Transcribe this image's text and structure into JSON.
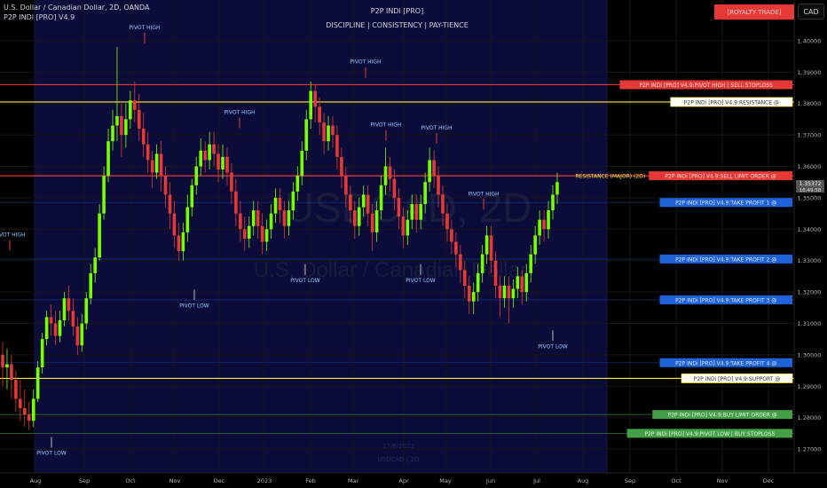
{
  "header": {
    "symbol_line": "U.S. Dollar / Canadian Dollar, 2D, OANDA",
    "indicator_line": "P2P INDi [PRO] V4.9",
    "center_title": "P2P INDi [PRO]",
    "center_subtitle": "DISCIPLINE  |  CONSISTENCY  |  PAY-TIENCE",
    "top_button": "[ROYALTY TRADE]",
    "currency_button": "CAD"
  },
  "watermark": {
    "big": "USDCAD, 2D",
    "small": "U.S. Dollar / Canadian Dollar"
  },
  "bottom_caption": [
    "17/8/2023",
    "USDCAD | 2D"
  ],
  "colors": {
    "up": "#76ff03",
    "down": "#e53935",
    "resistance": "#ffeb3b",
    "sell_stoploss": "#e53935",
    "take_profit": "#1e63d9",
    "buy": "#43a047",
    "zone_bg": "#0b0c3a",
    "grid": "#161616"
  },
  "chart_data": {
    "type": "candlestick",
    "y_axis_ticks": [
      "1.40000",
      "1.39000",
      "1.38000",
      "1.37000",
      "1.36000",
      "1.35000",
      "1.34000",
      "1.33000",
      "1.32000",
      "1.31000",
      "1.30000",
      "1.29000",
      "1.28000",
      "1.27000"
    ],
    "ylim": [
      1.265,
      1.405
    ],
    "x_axis_ticks": [
      "Aug",
      "Sep",
      "Oct",
      "Nov",
      "Dec",
      "2023",
      "Feb",
      "Mar",
      "Apr",
      "May",
      "Jun",
      "Jul",
      "Aug",
      "Sep",
      "Oct",
      "Nov",
      "Dec"
    ],
    "current_price": {
      "value": "1.35372",
      "countdown": "18:49:58"
    },
    "levels": [
      {
        "price": 1.386,
        "label": "P2P INDi [PRO] V4.9:PIVOT HIGH | SELL STOPLOSS",
        "price_label": "1.38600",
        "style": "sell_stoploss"
      },
      {
        "price": 1.3805,
        "label": "P2P INDi [PRO] V4.9:RESISTANCE @",
        "price_label": "1.38050",
        "style": "resistance"
      },
      {
        "price": 1.357,
        "label": "P2P INDi [PRO] V4.9:SELL LIMIT ORDER @",
        "price_label": "1.35700",
        "style": "sell_stoploss",
        "prefix": "RESISTANCE (MAJOR) (2D)"
      },
      {
        "price": 1.3485,
        "label": "P2P INDi [PRO] V4.9:TAKE PROFIT 1 @",
        "price_label": "1.34850",
        "style": "take_profit"
      },
      {
        "price": 1.3305,
        "label": "P2P INDi [PRO] V4.9:TAKE PROFIT 2 @",
        "price_label": "1.33050",
        "style": "take_profit"
      },
      {
        "price": 1.3175,
        "label": "P2P INDi [PRO] V4.9:TAKE PROFIT 3 @",
        "price_label": "1.31750",
        "style": "take_profit"
      },
      {
        "price": 1.2975,
        "label": "P2P INDi [PRO] V4.9:TAKE PROFIT 4 @",
        "price_label": "1.29750",
        "style": "take_profit"
      },
      {
        "price": 1.2925,
        "label": "P2P INDi [PRO] V4.9:SUPPORT @",
        "price_label": "1.29250",
        "style": "resistance"
      },
      {
        "price": 1.281,
        "label": "P2P INDi [PRO] V4.9:BUY LIMIT ORDER @",
        "price_label": "1.28100",
        "style": "buy"
      },
      {
        "price": 1.275,
        "label": "P2P INDi [PRO] V4.9:PIVOT LOW | BUY STOPLOSS",
        "price_label": "1.27500",
        "style": "buy"
      }
    ],
    "pivots": [
      {
        "label": "PIVOT HIGH",
        "type": "high",
        "x": "Jul",
        "price": 1.3315
      },
      {
        "label": "PIVOT LOW",
        "type": "low",
        "x": "Aug 2022",
        "price": 1.2755
      },
      {
        "label": "PIVOT HIGH",
        "type": "high",
        "x": "Oct",
        "price": 1.3975
      },
      {
        "label": "PIVOT LOW",
        "type": "low",
        "x": "Nov",
        "price": 1.3225
      },
      {
        "label": "PIVOT HIGH",
        "type": "high",
        "x": "Nov",
        "price": 1.3705
      },
      {
        "label": "PIVOT LOW",
        "type": "low",
        "x": "Jan",
        "price": 1.3305
      },
      {
        "label": "PIVOT HIGH",
        "type": "high",
        "x": "Mar",
        "price": 1.3865
      },
      {
        "label": "PIVOT HIGH",
        "type": "high",
        "x": "Apr",
        "price": 1.3665
      },
      {
        "label": "PIVOT LOW",
        "type": "low",
        "x": "Apr",
        "price": 1.3305
      },
      {
        "label": "PIVOT HIGH",
        "type": "high",
        "x": "May",
        "price": 1.3655
      },
      {
        "label": "PIVOT HIGH",
        "type": "high",
        "x": "Jun",
        "price": 1.3445
      },
      {
        "label": "PIVOT LOW",
        "type": "low",
        "x": "Jul",
        "price": 1.3095
      }
    ],
    "candles": [
      [
        1.3,
        1.296,
        1.304,
        1.29
      ],
      [
        1.296,
        1.297,
        1.302,
        1.289
      ],
      [
        1.297,
        1.292,
        1.3,
        1.286
      ],
      [
        1.292,
        1.286,
        1.295,
        1.282
      ],
      [
        1.286,
        1.283,
        1.292,
        1.279
      ],
      [
        1.283,
        1.281,
        1.289,
        1.277
      ],
      [
        1.281,
        1.279,
        1.285,
        1.276
      ],
      [
        1.279,
        1.286,
        1.289,
        1.277
      ],
      [
        1.286,
        1.296,
        1.298,
        1.285
      ],
      [
        1.296,
        1.305,
        1.307,
        1.294
      ],
      [
        1.305,
        1.312,
        1.314,
        1.303
      ],
      [
        1.312,
        1.31,
        1.316,
        1.306
      ],
      [
        1.31,
        1.306,
        1.314,
        1.303
      ],
      [
        1.306,
        1.311,
        1.314,
        1.304
      ],
      [
        1.311,
        1.318,
        1.32,
        1.309
      ],
      [
        1.318,
        1.314,
        1.322,
        1.311
      ],
      [
        1.314,
        1.309,
        1.318,
        1.306
      ],
      [
        1.309,
        1.303,
        1.312,
        1.3
      ],
      [
        1.303,
        1.31,
        1.313,
        1.301
      ],
      [
        1.31,
        1.318,
        1.32,
        1.308
      ],
      [
        1.318,
        1.326,
        1.329,
        1.316
      ],
      [
        1.326,
        1.331,
        1.334,
        1.323
      ],
      [
        1.331,
        1.345,
        1.348,
        1.33
      ],
      [
        1.345,
        1.357,
        1.36,
        1.343
      ],
      [
        1.357,
        1.368,
        1.372,
        1.355
      ],
      [
        1.368,
        1.373,
        1.378,
        1.365
      ],
      [
        1.373,
        1.376,
        1.398,
        1.368
      ],
      [
        1.376,
        1.37,
        1.38,
        1.363
      ],
      [
        1.37,
        1.375,
        1.38,
        1.366
      ],
      [
        1.375,
        1.381,
        1.384,
        1.372
      ],
      [
        1.381,
        1.378,
        1.387,
        1.374
      ],
      [
        1.378,
        1.372,
        1.383,
        1.368
      ],
      [
        1.372,
        1.367,
        1.377,
        1.363
      ],
      [
        1.367,
        1.362,
        1.371,
        1.358
      ],
      [
        1.362,
        1.358,
        1.365,
        1.353
      ],
      [
        1.358,
        1.364,
        1.367,
        1.356
      ],
      [
        1.364,
        1.357,
        1.368,
        1.352
      ],
      [
        1.357,
        1.351,
        1.36,
        1.347
      ],
      [
        1.351,
        1.345,
        1.355,
        1.34
      ],
      [
        1.345,
        1.338,
        1.349,
        1.334
      ],
      [
        1.338,
        1.333,
        1.342,
        1.33
      ],
      [
        1.333,
        1.339,
        1.342,
        1.33
      ],
      [
        1.339,
        1.347,
        1.351,
        1.336
      ],
      [
        1.347,
        1.354,
        1.356,
        1.344
      ],
      [
        1.354,
        1.36,
        1.363,
        1.351
      ],
      [
        1.36,
        1.365,
        1.369,
        1.357
      ],
      [
        1.365,
        1.362,
        1.368,
        1.358
      ],
      [
        1.362,
        1.367,
        1.371,
        1.359
      ],
      [
        1.367,
        1.364,
        1.371,
        1.36
      ],
      [
        1.364,
        1.359,
        1.367,
        1.355
      ],
      [
        1.359,
        1.363,
        1.367,
        1.356
      ],
      [
        1.363,
        1.358,
        1.366,
        1.354
      ],
      [
        1.358,
        1.352,
        1.361,
        1.348
      ],
      [
        1.352,
        1.345,
        1.356,
        1.341
      ],
      [
        1.345,
        1.34,
        1.349,
        1.336
      ],
      [
        1.34,
        1.337,
        1.344,
        1.333
      ],
      [
        1.337,
        1.341,
        1.344,
        1.334
      ],
      [
        1.341,
        1.346,
        1.349,
        1.338
      ],
      [
        1.346,
        1.341,
        1.349,
        1.337
      ],
      [
        1.341,
        1.336,
        1.345,
        1.332
      ],
      [
        1.336,
        1.34,
        1.343,
        1.333
      ],
      [
        1.34,
        1.345,
        1.348,
        1.337
      ],
      [
        1.345,
        1.35,
        1.353,
        1.342
      ],
      [
        1.35,
        1.346,
        1.353,
        1.342
      ],
      [
        1.346,
        1.341,
        1.349,
        1.337
      ],
      [
        1.341,
        1.346,
        1.349,
        1.338
      ],
      [
        1.346,
        1.352,
        1.355,
        1.343
      ],
      [
        1.352,
        1.357,
        1.36,
        1.349
      ],
      [
        1.357,
        1.365,
        1.368,
        1.354
      ],
      [
        1.365,
        1.375,
        1.378,
        1.362
      ],
      [
        1.375,
        1.384,
        1.387,
        1.372
      ],
      [
        1.384,
        1.379,
        1.386,
        1.374
      ],
      [
        1.379,
        1.374,
        1.382,
        1.37
      ],
      [
        1.374,
        1.368,
        1.377,
        1.364
      ],
      [
        1.368,
        1.373,
        1.376,
        1.365
      ],
      [
        1.373,
        1.37,
        1.376,
        1.366
      ],
      [
        1.37,
        1.363,
        1.373,
        1.359
      ],
      [
        1.363,
        1.357,
        1.366,
        1.353
      ],
      [
        1.357,
        1.351,
        1.36,
        1.347
      ],
      [
        1.351,
        1.346,
        1.354,
        1.342
      ],
      [
        1.346,
        1.341,
        1.349,
        1.337
      ],
      [
        1.341,
        1.347,
        1.35,
        1.338
      ],
      [
        1.347,
        1.351,
        1.354,
        1.344
      ],
      [
        1.351,
        1.345,
        1.354,
        1.341
      ],
      [
        1.345,
        1.339,
        1.348,
        1.333
      ],
      [
        1.339,
        1.346,
        1.349,
        1.336
      ],
      [
        1.346,
        1.354,
        1.357,
        1.343
      ],
      [
        1.354,
        1.36,
        1.366,
        1.351
      ],
      [
        1.36,
        1.356,
        1.363,
        1.352
      ],
      [
        1.356,
        1.35,
        1.359,
        1.346
      ],
      [
        1.35,
        1.344,
        1.353,
        1.34
      ],
      [
        1.344,
        1.338,
        1.347,
        1.334
      ],
      [
        1.338,
        1.343,
        1.346,
        1.335
      ],
      [
        1.343,
        1.348,
        1.351,
        1.34
      ],
      [
        1.348,
        1.343,
        1.351,
        1.339
      ],
      [
        1.343,
        1.348,
        1.351,
        1.34
      ],
      [
        1.348,
        1.355,
        1.358,
        1.345
      ],
      [
        1.355,
        1.362,
        1.366,
        1.352
      ],
      [
        1.362,
        1.357,
        1.365,
        1.353
      ],
      [
        1.357,
        1.351,
        1.36,
        1.347
      ],
      [
        1.351,
        1.345,
        1.354,
        1.341
      ],
      [
        1.345,
        1.34,
        1.348,
        1.336
      ],
      [
        1.34,
        1.336,
        1.343,
        1.332
      ],
      [
        1.336,
        1.332,
        1.339,
        1.328
      ],
      [
        1.332,
        1.327,
        1.335,
        1.323
      ],
      [
        1.327,
        1.322,
        1.33,
        1.318
      ],
      [
        1.322,
        1.317,
        1.325,
        1.313
      ],
      [
        1.317,
        1.32,
        1.323,
        1.313
      ],
      [
        1.32,
        1.326,
        1.329,
        1.317
      ],
      [
        1.326,
        1.332,
        1.335,
        1.323
      ],
      [
        1.332,
        1.338,
        1.341,
        1.329
      ],
      [
        1.338,
        1.33,
        1.341,
        1.326
      ],
      [
        1.33,
        1.322,
        1.333,
        1.318
      ],
      [
        1.322,
        1.318,
        1.325,
        1.312
      ],
      [
        1.318,
        1.322,
        1.325,
        1.315
      ],
      [
        1.322,
        1.318,
        1.325,
        1.31
      ],
      [
        1.318,
        1.321,
        1.324,
        1.315
      ],
      [
        1.321,
        1.325,
        1.328,
        1.318
      ],
      [
        1.325,
        1.32,
        1.327,
        1.316
      ],
      [
        1.32,
        1.326,
        1.329,
        1.317
      ],
      [
        1.326,
        1.332,
        1.335,
        1.323
      ],
      [
        1.332,
        1.338,
        1.341,
        1.329
      ],
      [
        1.338,
        1.343,
        1.346,
        1.335
      ],
      [
        1.343,
        1.34,
        1.346,
        1.336
      ],
      [
        1.34,
        1.346,
        1.349,
        1.337
      ],
      [
        1.346,
        1.351,
        1.354,
        1.343
      ],
      [
        1.351,
        1.355,
        1.358,
        1.348
      ]
    ]
  }
}
